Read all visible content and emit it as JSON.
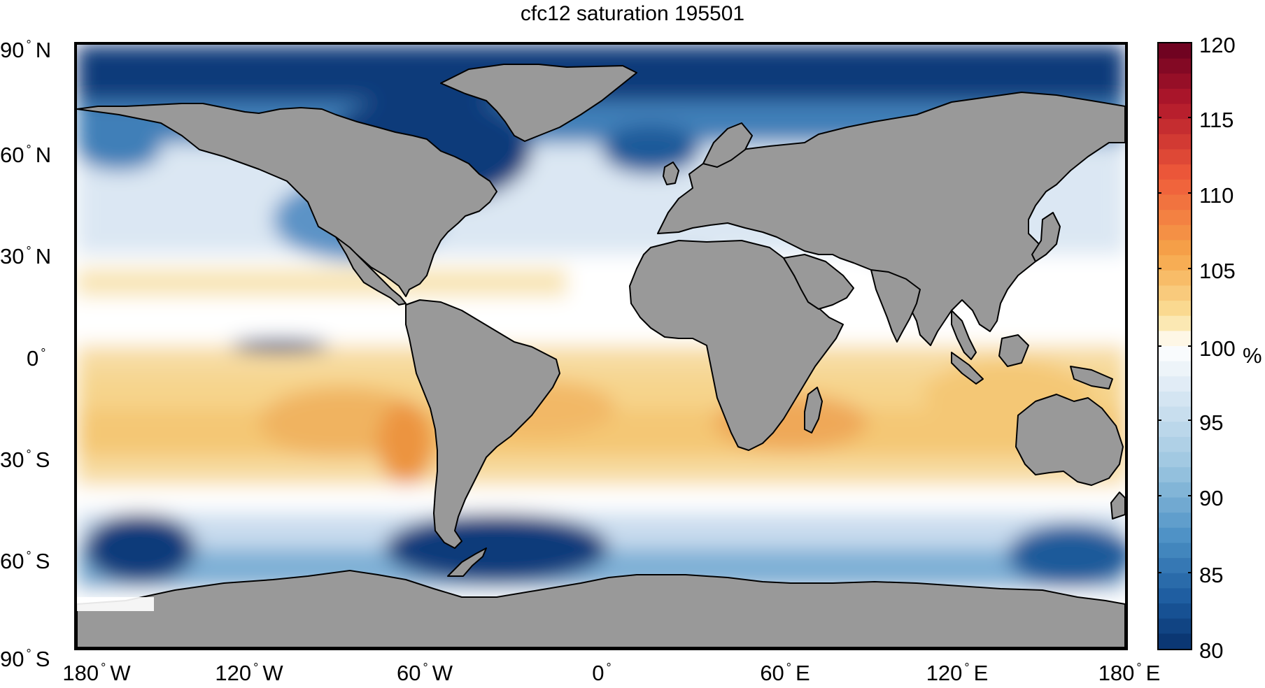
{
  "title": "cfc12 saturation 195501",
  "y_axis": {
    "ticks": [
      {
        "value": "90",
        "hemi": "N"
      },
      {
        "value": "60",
        "hemi": "N"
      },
      {
        "value": "30",
        "hemi": "N"
      },
      {
        "value": "0",
        "hemi": ""
      },
      {
        "value": "30",
        "hemi": "S"
      },
      {
        "value": "60",
        "hemi": "S"
      },
      {
        "value": "90",
        "hemi": "S"
      }
    ]
  },
  "x_axis": {
    "ticks": [
      {
        "value": "180",
        "hemi": "W"
      },
      {
        "value": "120",
        "hemi": "W"
      },
      {
        "value": "60",
        "hemi": "W"
      },
      {
        "value": "0",
        "hemi": ""
      },
      {
        "value": "60",
        "hemi": "E"
      },
      {
        "value": "120",
        "hemi": "E"
      },
      {
        "value": "180",
        "hemi": "E"
      }
    ]
  },
  "colorbar": {
    "ticks": [
      "120",
      "115",
      "110",
      "105",
      "100",
      "95",
      "90",
      "85",
      "80"
    ],
    "unit": "%",
    "min": 80,
    "max": 120,
    "colormap": "diverging blue-white-red"
  },
  "colors": {
    "land": "#999999",
    "coast": "#000000",
    "deep_blue": "#0b3b7a",
    "light_blue": "#d4e3f0",
    "neutral": "#ffffff",
    "warm": "#f7d48a",
    "hot": "#ef8a3a"
  }
}
